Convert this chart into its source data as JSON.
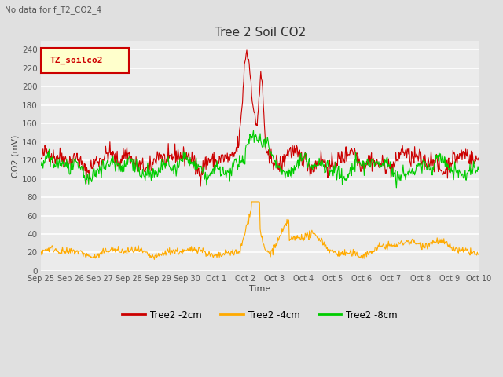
{
  "title": "Tree 2 Soil CO2",
  "subtitle": "No data for f_T2_CO2_4",
  "ylabel": "CO2 (mV)",
  "xlabel": "Time",
  "legend_label": "TZ_soilco2",
  "ylim": [
    0,
    250
  ],
  "yticks": [
    0,
    20,
    40,
    60,
    80,
    100,
    120,
    140,
    160,
    180,
    200,
    220,
    240
  ],
  "xtick_labels": [
    "Sep 25",
    "Sep 26",
    "Sep 27",
    "Sep 28",
    "Sep 29",
    "Sep 30",
    "Oct 1",
    "Oct 2",
    "Oct 3",
    "Oct 4",
    "Oct 5",
    "Oct 6",
    "Oct 7",
    "Oct 8",
    "Oct 9",
    "Oct 10"
  ],
  "bg_color": "#e0e0e0",
  "plot_bg_color": "#ebebeb",
  "line_colors": {
    "2cm": "#cc0000",
    "4cm": "#ffaa00",
    "8cm": "#00cc00"
  },
  "legend_entries": [
    "Tree2 -2cm",
    "Tree2 -4cm",
    "Tree2 -8cm"
  ]
}
